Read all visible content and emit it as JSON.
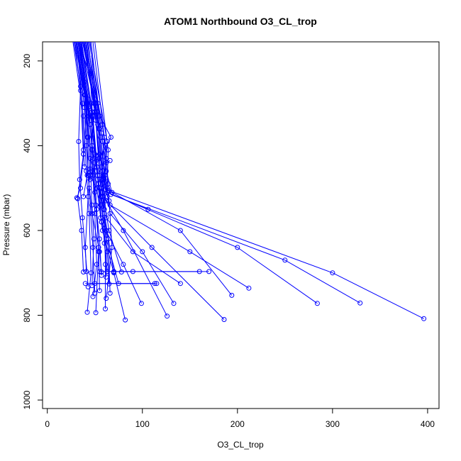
{
  "chart_data": {
    "type": "line",
    "title": "ATOM1 Northbound O3_CL_trop",
    "xlabel": "O3_CL_trop",
    "ylabel": "Pressure (mbar)",
    "xlim": [
      -5,
      412
    ],
    "ylim": [
      1020,
      155
    ],
    "y_reversed": true,
    "x_ticks": [
      0,
      100,
      200,
      300,
      400
    ],
    "y_ticks": [
      200,
      400,
      600,
      800,
      1000
    ],
    "series_color": "#0000ff",
    "marker": "open-circle",
    "series": [
      {
        "values": [
          [
            40,
            155
          ],
          [
            55,
            330
          ],
          [
            67,
            380
          ],
          [
            45,
            470
          ],
          [
            52,
            500
          ],
          [
            106,
            550
          ]
        ]
      },
      {
        "values": [
          [
            30,
            155
          ],
          [
            42,
            300
          ],
          [
            38,
            420
          ],
          [
            32,
            525
          ],
          [
            36,
            600
          ],
          [
            38,
            698
          ]
        ]
      },
      {
        "values": [
          [
            35,
            155
          ],
          [
            50,
            300
          ],
          [
            45,
            455
          ],
          [
            43,
            520
          ],
          [
            40,
            640
          ],
          [
            41,
            697
          ]
        ]
      },
      {
        "values": [
          [
            28,
            155
          ],
          [
            35,
            260
          ],
          [
            33,
            390
          ],
          [
            34,
            480
          ],
          [
            37,
            570
          ],
          [
            43,
            733
          ]
        ]
      },
      {
        "values": [
          [
            32,
            155
          ],
          [
            45,
            230
          ],
          [
            50,
            420
          ],
          [
            55,
            500
          ],
          [
            60,
            560
          ],
          [
            70,
            698
          ]
        ]
      },
      {
        "values": [
          [
            38,
            155
          ],
          [
            58,
            350
          ],
          [
            62,
            430
          ],
          [
            58,
            510
          ],
          [
            65,
            600
          ],
          [
            78,
            698
          ]
        ]
      },
      {
        "values": [
          [
            34,
            155
          ],
          [
            47,
            330
          ],
          [
            52,
            460
          ],
          [
            56,
            520
          ],
          [
            62,
            620
          ],
          [
            75,
            725
          ]
        ]
      },
      {
        "values": [
          [
            29,
            155
          ],
          [
            39,
            280
          ],
          [
            41,
            400
          ],
          [
            44,
            500
          ],
          [
            48,
            640
          ],
          [
            50,
            748
          ]
        ]
      },
      {
        "values": [
          [
            36,
            155
          ],
          [
            46,
            300
          ],
          [
            48,
            470
          ],
          [
            50,
            560
          ],
          [
            52,
            680
          ],
          [
            48,
            756
          ]
        ]
      },
      {
        "values": [
          [
            41,
            155
          ],
          [
            55,
            360
          ],
          [
            60,
            470
          ],
          [
            65,
            530
          ],
          [
            68,
            640
          ],
          [
            62,
            760
          ]
        ]
      },
      {
        "values": [
          [
            33,
            155
          ],
          [
            43,
            290
          ],
          [
            47,
            410
          ],
          [
            50,
            510
          ],
          [
            54,
            640
          ],
          [
            51,
            794
          ]
        ]
      },
      {
        "values": [
          [
            27,
            155
          ],
          [
            38,
            330
          ],
          [
            41,
            460
          ],
          [
            44,
            560
          ],
          [
            46,
            700
          ],
          [
            42,
            793
          ]
        ]
      },
      {
        "values": [
          [
            37,
            155
          ],
          [
            52,
            320
          ],
          [
            57,
            450
          ],
          [
            60,
            550
          ],
          [
            61,
            680
          ],
          [
            61,
            785
          ]
        ]
      },
      {
        "values": [
          [
            31,
            155
          ],
          [
            45,
            350
          ],
          [
            52,
            500
          ],
          [
            58,
            600
          ],
          [
            70,
            700
          ],
          [
            82,
            811
          ]
        ]
      },
      {
        "values": [
          [
            39,
            155
          ],
          [
            51,
            340
          ],
          [
            55,
            470
          ],
          [
            59,
            520
          ],
          [
            80,
            600
          ],
          [
            126,
            802
          ]
        ]
      },
      {
        "values": [
          [
            42,
            155
          ],
          [
            60,
            380
          ],
          [
            57,
            480
          ],
          [
            62,
            530
          ],
          [
            110,
            640
          ],
          [
            186,
            810
          ]
        ]
      },
      {
        "values": [
          [
            44,
            155
          ],
          [
            63,
            390
          ],
          [
            60,
            495
          ],
          [
            66,
            540
          ],
          [
            150,
            650
          ],
          [
            212,
            736
          ]
        ]
      },
      {
        "values": [
          [
            46,
            155
          ],
          [
            57,
            370
          ],
          [
            62,
            460
          ],
          [
            68,
            510
          ],
          [
            140,
            600
          ],
          [
            194,
            753
          ]
        ]
      },
      {
        "values": [
          [
            43,
            155
          ],
          [
            54,
            360
          ],
          [
            59,
            480
          ],
          [
            63,
            510
          ],
          [
            200,
            640
          ],
          [
            284,
            772
          ]
        ]
      },
      {
        "values": [
          [
            48,
            155
          ],
          [
            61,
            400
          ],
          [
            64,
            490
          ],
          [
            67,
            515
          ],
          [
            250,
            670
          ],
          [
            329,
            771
          ]
        ]
      },
      {
        "values": [
          [
            45,
            155
          ],
          [
            56,
            380
          ],
          [
            61,
            470
          ],
          [
            64,
            505
          ],
          [
            300,
            700
          ],
          [
            396,
            808
          ]
        ]
      },
      {
        "values": [
          [
            50,
            155
          ],
          [
            64,
            410
          ],
          [
            63,
            500
          ],
          [
            66,
            560
          ],
          [
            100,
            650
          ],
          [
            133,
            772
          ]
        ]
      },
      {
        "values": [
          [
            35,
            155
          ],
          [
            48,
            330
          ],
          [
            54,
            490
          ],
          [
            57,
            580
          ],
          [
            80,
            680
          ],
          [
            99,
            772
          ]
        ]
      },
      {
        "values": [
          [
            40,
            155
          ],
          [
            53,
            350
          ],
          [
            58,
            460
          ],
          [
            62,
            570
          ],
          [
            90,
            650
          ],
          [
            140,
            725
          ]
        ]
      },
      {
        "values": [
          [
            36,
            155
          ],
          [
            47,
            320
          ],
          [
            52,
            450
          ],
          [
            56,
            540
          ],
          [
            64,
            620
          ],
          [
            66,
            748
          ]
        ]
      },
      {
        "values": [
          [
            30,
            155
          ],
          [
            41,
            300
          ],
          [
            45,
            430
          ],
          [
            47,
            540
          ],
          [
            49,
            620
          ],
          [
            47,
            730
          ]
        ]
      },
      {
        "values": [
          [
            33,
            155
          ],
          [
            46,
            340
          ],
          [
            53,
            480
          ],
          [
            57,
            580
          ],
          [
            63,
            650
          ],
          [
            65,
            726
          ]
        ]
      },
      {
        "values": [
          [
            38,
            155
          ],
          [
            49,
            300
          ],
          [
            55,
            430
          ],
          [
            58,
            520
          ],
          [
            62,
            600
          ],
          [
            62,
            710
          ]
        ]
      },
      {
        "values": [
          [
            31,
            155
          ],
          [
            39,
            310
          ],
          [
            43,
            470
          ],
          [
            47,
            560
          ],
          [
            55,
            650
          ],
          [
            57,
            698
          ]
        ]
      },
      {
        "values": [
          [
            34,
            155
          ],
          [
            44,
            330
          ],
          [
            49,
            440
          ],
          [
            52,
            550
          ],
          [
            54,
            650
          ],
          [
            55,
            742
          ]
        ]
      },
      {
        "values": [
          [
            37,
            155
          ],
          [
            50,
            290
          ],
          [
            54,
            430
          ],
          [
            57,
            530
          ],
          [
            60,
            630
          ],
          [
            63,
            697
          ]
        ]
      },
      {
        "values": [
          [
            32,
            155
          ],
          [
            42,
            300
          ],
          [
            47,
            460
          ],
          [
            51,
            540
          ],
          [
            55,
            620
          ],
          [
            57,
            706
          ]
        ]
      },
      {
        "values": [
          [
            29,
            155
          ],
          [
            35,
            270
          ],
          [
            38,
            420
          ],
          [
            35,
            500
          ],
          [
            31,
            523
          ]
        ]
      },
      {
        "values": [
          [
            33,
            155
          ],
          [
            40,
            280
          ],
          [
            43,
            380
          ],
          [
            42,
            470
          ],
          [
            38,
            520
          ]
        ]
      },
      {
        "values": [
          [
            35,
            155
          ],
          [
            43,
            310
          ],
          [
            47,
            400
          ],
          [
            53,
            470
          ],
          [
            56,
            570
          ]
        ]
      },
      {
        "values": [
          [
            39,
            155
          ],
          [
            50,
            320
          ],
          [
            55,
            420
          ],
          [
            60,
            480
          ],
          [
            63,
            520
          ]
        ]
      },
      {
        "values": [
          [
            42,
            155
          ],
          [
            53,
            300
          ],
          [
            58,
            390
          ],
          [
            62,
            440
          ],
          [
            66,
            435
          ]
        ]
      },
      {
        "values": [
          [
            31,
            155
          ],
          [
            37,
            300
          ],
          [
            38,
            410
          ],
          [
            39,
            450
          ]
        ]
      },
      {
        "values": [
          [
            34,
            155
          ],
          [
            39,
            250
          ],
          [
            42,
            380
          ],
          [
            45,
            480
          ]
        ]
      }
    ],
    "segments": [
      {
        "x": [
          63,
          160
        ],
        "y": [
          697,
          697
        ]
      },
      {
        "x": [
          70,
          170
        ],
        "y": [
          697,
          697
        ]
      },
      {
        "x": [
          40,
          113
        ],
        "y": [
          725,
          725
        ]
      },
      {
        "x": [
          50,
          115
        ],
        "y": [
          725,
          725
        ]
      },
      {
        "x": [
          55,
          90
        ],
        "y": [
          697,
          697
        ]
      }
    ]
  }
}
